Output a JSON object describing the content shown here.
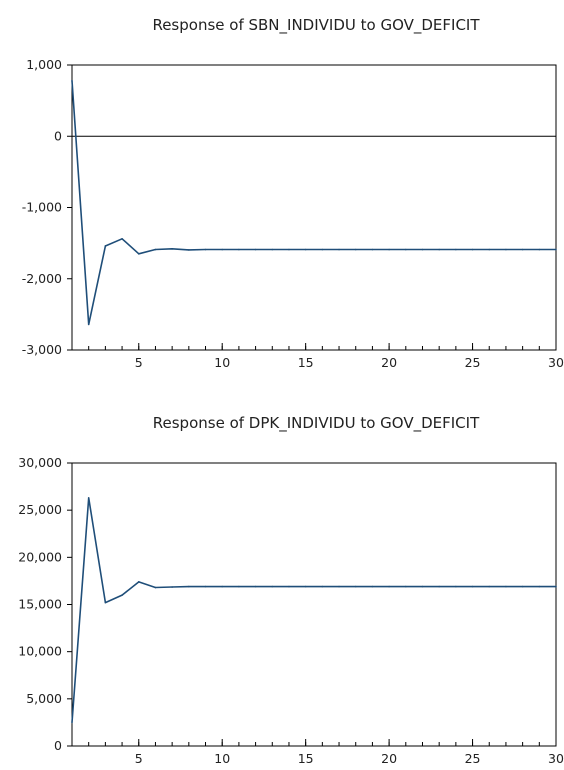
{
  "chart_data": [
    {
      "type": "line",
      "title": "Response of SBN_INDIVIDU to GOV_DEFICIT",
      "xlabel": "",
      "ylabel": "",
      "xlim": [
        1,
        30
      ],
      "ylim": [
        -3000,
        1000
      ],
      "x_ticks": [
        5,
        10,
        15,
        20,
        25,
        30
      ],
      "x_tick_labels": [
        "5",
        "10",
        "15",
        "20",
        "25",
        "30"
      ],
      "y_ticks": [
        1000,
        0,
        -1000,
        -2000,
        -3000
      ],
      "y_tick_labels": [
        "1,000",
        "0",
        "-1,000",
        "-2,000",
        "-3,000"
      ],
      "zero_line": true,
      "grid": false,
      "line_color": "#1f4e79",
      "series": [
        {
          "x": [
            1,
            2,
            3,
            4,
            5,
            6,
            7,
            8,
            9,
            10,
            11,
            12,
            13,
            14,
            15,
            16,
            17,
            18,
            19,
            20,
            21,
            22,
            23,
            24,
            25,
            26,
            27,
            28,
            29,
            30
          ],
          "values": [
            780,
            -2640,
            -1540,
            -1440,
            -1650,
            -1590,
            -1580,
            -1595,
            -1590,
            -1590,
            -1590,
            -1590,
            -1590,
            -1590,
            -1590,
            -1590,
            -1590,
            -1590,
            -1590,
            -1590,
            -1590,
            -1590,
            -1590,
            -1590,
            -1590,
            -1590,
            -1590,
            -1590,
            -1590,
            -1590
          ]
        }
      ]
    },
    {
      "type": "line",
      "title": "Response of DPK_INDIVIDU to GOV_DEFICIT",
      "xlabel": "",
      "ylabel": "",
      "xlim": [
        1,
        30
      ],
      "ylim": [
        0,
        30000
      ],
      "x_ticks": [
        5,
        10,
        15,
        20,
        25,
        30
      ],
      "x_tick_labels": [
        "5",
        "10",
        "15",
        "20",
        "25",
        "30"
      ],
      "y_ticks": [
        30000,
        25000,
        20000,
        15000,
        10000,
        5000,
        0
      ],
      "y_tick_labels": [
        "30,000",
        "25,000",
        "20,000",
        "15,000",
        "10,000",
        "5,000",
        "0"
      ],
      "zero_line": false,
      "grid": false,
      "line_color": "#1f4e79",
      "series": [
        {
          "x": [
            1,
            2,
            3,
            4,
            5,
            6,
            7,
            8,
            9,
            10,
            11,
            12,
            13,
            14,
            15,
            16,
            17,
            18,
            19,
            20,
            21,
            22,
            23,
            24,
            25,
            26,
            27,
            28,
            29,
            30
          ],
          "values": [
            2500,
            26300,
            15200,
            16000,
            17400,
            16800,
            16850,
            16900,
            16900,
            16900,
            16900,
            16900,
            16900,
            16900,
            16900,
            16900,
            16900,
            16900,
            16900,
            16900,
            16900,
            16900,
            16900,
            16900,
            16900,
            16900,
            16900,
            16900,
            16900,
            16900
          ]
        }
      ]
    }
  ]
}
